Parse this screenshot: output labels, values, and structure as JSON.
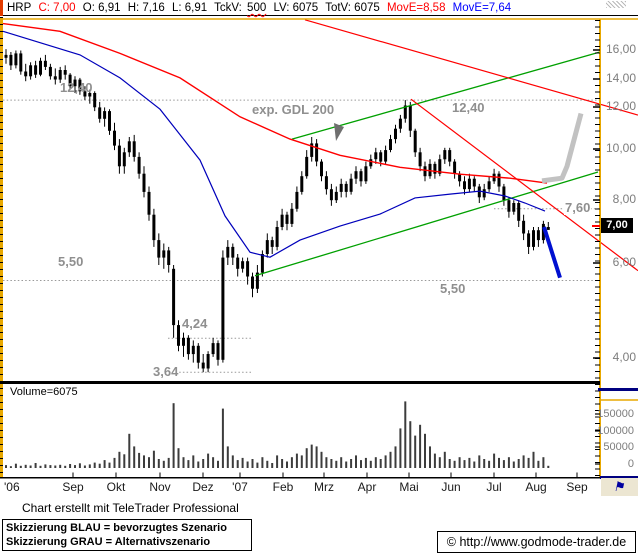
{
  "header": {
    "symbol": "HRP",
    "close": "C: 7,00",
    "open": "O: 6,91",
    "high": "H: 7,16",
    "low": "L: 6,91",
    "tickvol_label": "TckV:",
    "tickvol_value": "500",
    "lastvol": "LV: 6075",
    "totalvol": "TotV: 6075",
    "mov_red": "MovE=8,58",
    "mov_blue": "MovE=7,64"
  },
  "chart_data": {
    "type": "candlestick",
    "title": "HRP weekly chart with GDL 200, trend channels and scenario sketches",
    "price_axis": {
      "scale": "log",
      "tick_labels": [
        "16,00",
        "14,00",
        "12,00",
        "10,00",
        "8,00",
        "6,00",
        "4,00"
      ],
      "tick_values": [
        16,
        14,
        12,
        10,
        8,
        6,
        4
      ],
      "current_price_label": "7,00",
      "current_price": 7.0
    },
    "volume_axis": {
      "tick_labels": [
        "150000",
        "100000",
        "50000",
        "0"
      ],
      "tick_values": [
        150000,
        100000,
        50000,
        0
      ]
    },
    "volume_title": "Volume=6075",
    "x_axis": {
      "labels": [
        "'06",
        "Sep",
        "Okt",
        "Nov",
        "Dez",
        "'07",
        "Feb",
        "Mrz",
        "Apr",
        "Mai",
        "Jun",
        "Jul",
        "Aug",
        "Sep"
      ]
    },
    "levels": [
      {
        "label": "12,40",
        "price": 12.4
      },
      {
        "label": "7,60",
        "price": 7.6
      },
      {
        "label": "5,50",
        "price": 5.5
      },
      {
        "label": "4,24",
        "price": 4.24
      },
      {
        "label": "3,64",
        "price": 3.64
      }
    ],
    "annotations": {
      "gdl200": "exp. GDL 200"
    },
    "colors": {
      "candle": "#000000",
      "ma_red": "#ff0000",
      "ma_blue": "#0000bb",
      "trend_green": "#00a000",
      "sketch_blue": "#0010d0",
      "sketch_gray": "#c2c2c2",
      "frame": "#e8a800",
      "level_gray": "#999999",
      "navy": "#000080",
      "volume_bar": "#3c3c3c"
    },
    "candles": [
      [
        15.0,
        15.6,
        14.6,
        15.2
      ],
      [
        15.2,
        15.4,
        14.2,
        14.5
      ],
      [
        14.5,
        15.5,
        14.3,
        15.3
      ],
      [
        15.3,
        15.5,
        13.9,
        14.1
      ],
      [
        14.1,
        14.6,
        13.5,
        13.8
      ],
      [
        13.8,
        14.7,
        13.6,
        14.5
      ],
      [
        14.5,
        14.8,
        13.7,
        13.9
      ],
      [
        13.9,
        15.0,
        13.8,
        14.8
      ],
      [
        14.8,
        15.2,
        14.2,
        14.4
      ],
      [
        14.4,
        14.6,
        13.6,
        13.8
      ],
      [
        13.8,
        14.3,
        13.3,
        13.6
      ],
      [
        13.6,
        14.4,
        13.4,
        14.2
      ],
      [
        14.2,
        14.5,
        13.6,
        13.9
      ],
      [
        13.9,
        14.0,
        13.0,
        13.2
      ],
      [
        13.2,
        13.8,
        12.8,
        13.6
      ],
      [
        13.6,
        13.7,
        12.7,
        12.9
      ],
      [
        12.9,
        13.2,
        12.4,
        12.6
      ],
      [
        12.6,
        13.0,
        12.2,
        12.8
      ],
      [
        12.8,
        12.9,
        11.8,
        12.0
      ],
      [
        12.0,
        12.3,
        11.2,
        11.4
      ],
      [
        11.4,
        12.0,
        11.0,
        11.8
      ],
      [
        11.8,
        11.9,
        10.6,
        10.8
      ],
      [
        10.8,
        11.2,
        9.9,
        10.1
      ],
      [
        10.1,
        10.4,
        8.9,
        9.2
      ],
      [
        9.2,
        10.0,
        8.9,
        9.8
      ],
      [
        9.8,
        10.5,
        9.6,
        10.3
      ],
      [
        10.3,
        10.6,
        9.4,
        9.6
      ],
      [
        9.6,
        9.8,
        8.7,
        8.9
      ],
      [
        8.9,
        9.2,
        8.0,
        8.2
      ],
      [
        8.2,
        8.4,
        7.2,
        7.4
      ],
      [
        7.4,
        7.6,
        6.4,
        6.6
      ],
      [
        6.6,
        6.8,
        5.9,
        6.1
      ],
      [
        6.1,
        6.5,
        5.8,
        6.3
      ],
      [
        6.3,
        6.4,
        5.7,
        5.9
      ],
      [
        5.8,
        5.9,
        4.25,
        4.5
      ],
      [
        4.5,
        4.6,
        4.0,
        4.1
      ],
      [
        4.1,
        4.35,
        3.9,
        4.25
      ],
      [
        4.25,
        4.3,
        3.85,
        3.95
      ],
      [
        3.95,
        4.2,
        3.8,
        4.1
      ],
      [
        4.1,
        4.15,
        3.7,
        3.8
      ],
      [
        3.8,
        3.95,
        3.64,
        3.7
      ],
      [
        3.7,
        4.0,
        3.64,
        3.95
      ],
      [
        3.95,
        4.25,
        3.9,
        4.15
      ],
      [
        4.15,
        4.2,
        3.75,
        3.85
      ],
      [
        3.85,
        6.3,
        3.8,
        6.1
      ],
      [
        6.1,
        6.6,
        5.9,
        6.4
      ],
      [
        6.4,
        6.5,
        5.9,
        6.1
      ],
      [
        6.1,
        6.2,
        5.6,
        5.8
      ],
      [
        5.8,
        6.1,
        5.7,
        6.0
      ],
      [
        6.0,
        6.1,
        5.4,
        5.6
      ],
      [
        5.6,
        5.7,
        5.1,
        5.3
      ],
      [
        5.3,
        5.9,
        5.2,
        5.7
      ],
      [
        5.7,
        6.3,
        5.6,
        6.2
      ],
      [
        6.2,
        6.8,
        6.1,
        6.6
      ],
      [
        6.6,
        6.7,
        6.2,
        6.4
      ],
      [
        6.4,
        7.2,
        6.3,
        7.0
      ],
      [
        7.0,
        7.6,
        6.9,
        7.4
      ],
      [
        7.4,
        7.5,
        6.9,
        7.1
      ],
      [
        7.1,
        7.8,
        7.0,
        7.6
      ],
      [
        7.6,
        8.4,
        7.5,
        8.2
      ],
      [
        8.2,
        9.0,
        8.1,
        8.8
      ],
      [
        8.8,
        9.9,
        8.7,
        9.6
      ],
      [
        9.6,
        10.5,
        9.4,
        10.2
      ],
      [
        10.2,
        10.4,
        9.2,
        9.4
      ],
      [
        9.4,
        9.5,
        8.6,
        8.8
      ],
      [
        8.8,
        9.0,
        8.1,
        8.3
      ],
      [
        8.3,
        8.5,
        7.7,
        7.9
      ],
      [
        7.9,
        8.4,
        7.8,
        8.2
      ],
      [
        8.2,
        8.7,
        8.0,
        8.5
      ],
      [
        8.5,
        8.6,
        8.0,
        8.2
      ],
      [
        8.2,
        8.9,
        8.1,
        8.7
      ],
      [
        8.7,
        9.2,
        8.5,
        9.0
      ],
      [
        9.0,
        9.1,
        8.4,
        8.6
      ],
      [
        8.6,
        9.4,
        8.5,
        9.2
      ],
      [
        9.2,
        9.7,
        9.1,
        9.5
      ],
      [
        9.5,
        10.0,
        9.3,
        9.8
      ],
      [
        9.8,
        9.9,
        9.2,
        9.4
      ],
      [
        9.4,
        10.1,
        9.3,
        9.9
      ],
      [
        9.9,
        10.6,
        9.8,
        10.4
      ],
      [
        10.4,
        11.1,
        10.2,
        10.9
      ],
      [
        10.9,
        11.6,
        10.7,
        11.4
      ],
      [
        11.4,
        12.4,
        11.2,
        12.1
      ],
      [
        12.1,
        12.3,
        10.5,
        10.8
      ],
      [
        10.8,
        10.9,
        9.6,
        9.8
      ],
      [
        9.8,
        10.0,
        9.0,
        9.2
      ],
      [
        9.2,
        9.4,
        8.6,
        8.8
      ],
      [
        8.8,
        9.5,
        8.7,
        9.3
      ],
      [
        9.3,
        9.4,
        8.7,
        8.9
      ],
      [
        8.9,
        9.7,
        8.8,
        9.5
      ],
      [
        9.5,
        10.0,
        9.3,
        9.9
      ],
      [
        9.9,
        10.0,
        9.2,
        9.4
      ],
      [
        9.4,
        9.5,
        8.7,
        8.9
      ],
      [
        8.9,
        9.0,
        8.4,
        8.6
      ],
      [
        8.6,
        8.8,
        8.1,
        8.3
      ],
      [
        8.3,
        8.9,
        8.2,
        8.7
      ],
      [
        8.7,
        8.8,
        8.2,
        8.4
      ],
      [
        8.4,
        8.5,
        7.8,
        8.0
      ],
      [
        8.0,
        8.5,
        7.9,
        8.3
      ],
      [
        8.3,
        8.8,
        8.2,
        8.6
      ],
      [
        8.6,
        9.1,
        8.5,
        8.9
      ],
      [
        8.9,
        9.0,
        8.2,
        8.4
      ],
      [
        8.4,
        8.5,
        7.7,
        7.9
      ],
      [
        7.9,
        8.0,
        7.3,
        7.5
      ],
      [
        7.5,
        7.9,
        7.4,
        7.8
      ],
      [
        7.8,
        7.9,
        7.0,
        7.2
      ],
      [
        7.2,
        7.4,
        6.6,
        6.8
      ],
      [
        6.8,
        6.9,
        6.2,
        6.4
      ],
      [
        6.4,
        7.0,
        6.3,
        6.9
      ],
      [
        6.9,
        7.0,
        6.4,
        6.6
      ],
      [
        6.6,
        7.2,
        6.5,
        7.1
      ],
      [
        6.91,
        7.16,
        6.91,
        7.0
      ]
    ],
    "volumes": [
      8000,
      5000,
      12000,
      6000,
      9000,
      7000,
      14000,
      6000,
      10000,
      8000,
      7000,
      9000,
      6000,
      11000,
      8000,
      13000,
      7000,
      10000,
      15000,
      12000,
      22000,
      15000,
      28000,
      45000,
      38000,
      95000,
      60000,
      42000,
      35000,
      30000,
      48000,
      25000,
      20000,
      28000,
      180000,
      55000,
      30000,
      22000,
      35000,
      18000,
      25000,
      40000,
      30000,
      20000,
      165000,
      60000,
      35000,
      22000,
      28000,
      18000,
      25000,
      15000,
      30000,
      20000,
      14000,
      35000,
      25000,
      18000,
      30000,
      40000,
      35000,
      55000,
      65000,
      60000,
      45000,
      30000,
      25000,
      20000,
      30000,
      18000,
      25000,
      35000,
      22000,
      28000,
      20000,
      30000,
      25000,
      35000,
      45000,
      60000,
      110000,
      185000,
      130000,
      90000,
      120000,
      95000,
      60000,
      40000,
      30000,
      45000,
      25000,
      20000,
      30000,
      22000,
      28000,
      18000,
      35000,
      25000,
      20000,
      40000,
      28000,
      22000,
      30000,
      18000,
      25000,
      35000,
      28000,
      45000,
      20000,
      30000,
      6075
    ],
    "overlays": {
      "gdl200_red": [
        [
          3,
          17.5
        ],
        [
          60,
          16.9
        ],
        [
          120,
          15.3
        ],
        [
          180,
          13.7
        ],
        [
          240,
          11.5
        ],
        [
          290,
          10.4
        ],
        [
          340,
          9.67
        ],
        [
          400,
          9.16
        ],
        [
          460,
          8.88
        ],
        [
          510,
          8.72
        ],
        [
          547,
          8.53
        ]
      ],
      "ma_blue": [
        [
          3,
          16.9
        ],
        [
          80,
          15.2
        ],
        [
          120,
          13.7
        ],
        [
          160,
          11.9
        ],
        [
          200,
          9.46
        ],
        [
          225,
          7.36
        ],
        [
          250,
          6.25
        ],
        [
          270,
          6.11
        ],
        [
          300,
          6.6
        ],
        [
          340,
          7.03
        ],
        [
          380,
          7.42
        ],
        [
          415,
          7.98
        ],
        [
          450,
          8.12
        ],
        [
          480,
          8.23
        ],
        [
          505,
          8.05
        ],
        [
          525,
          7.8
        ],
        [
          545,
          7.52
        ]
      ],
      "trend_red_long": [
        [
          305,
          17.8
        ],
        [
          638,
          11.59
        ]
      ],
      "trend_red_may": [
        [
          411,
          12.45
        ],
        [
          638,
          5.75
        ]
      ],
      "trend_green_upper": [
        [
          292,
          10.4
        ],
        [
          600,
          15.4
        ]
      ],
      "trend_green_lower": [
        [
          255,
          5.62
        ],
        [
          598,
          8.97
        ]
      ],
      "sketch_blue_preferred": [
        [
          544,
          7.0
        ],
        [
          551,
          6.33
        ],
        [
          560,
          5.57
        ]
      ],
      "sketch_gray_alternative": [
        [
          542,
          8.62
        ],
        [
          562,
          8.72
        ],
        [
          567,
          9.2
        ],
        [
          581,
          11.67
        ]
      ]
    }
  },
  "footer": {
    "note": "Chart erstellt mit TeleTrader Professional",
    "legend_line1": "Skizzierung BLAU = bevorzugtes Szenario",
    "legend_line2": "Skizzierung GRAU = Alternativszenario",
    "url": "© http://www.godmode-trader.de",
    "flag_icon": "⚑"
  }
}
